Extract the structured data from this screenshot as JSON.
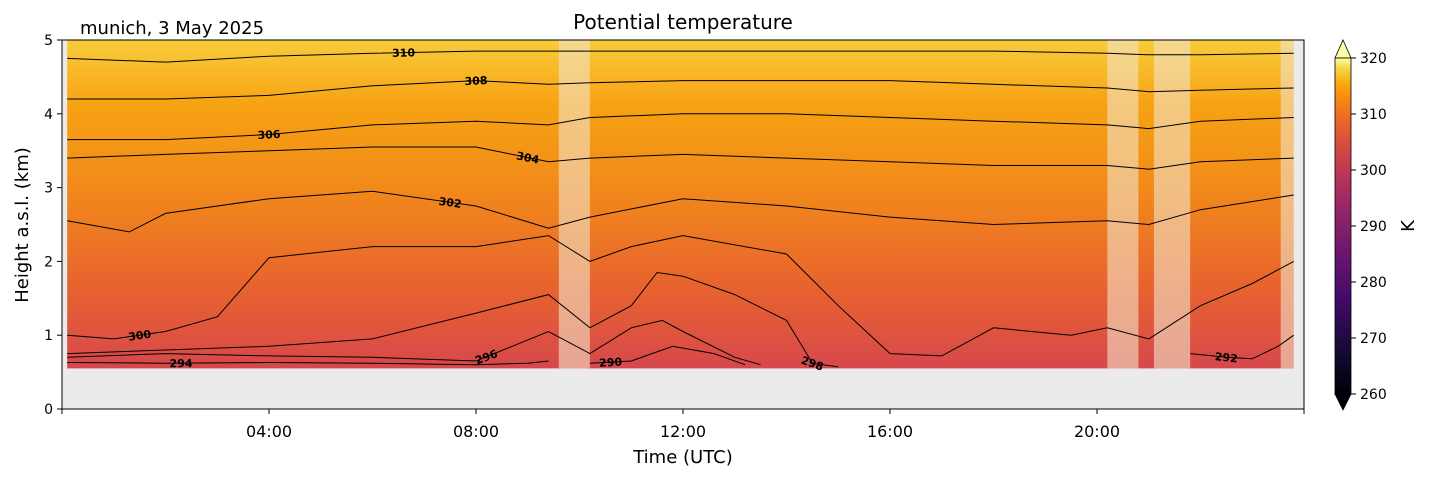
{
  "chart_data": {
    "type": "heatmap",
    "title": "Potential temperature",
    "location_date": "munich, 3 May 2025",
    "xlabel": "Time (UTC)",
    "ylabel": "Height a.s.l. (km)",
    "xlim_hours": [
      0,
      24
    ],
    "ylim": [
      0,
      5
    ],
    "x_ticks": [
      {
        "hour": 4,
        "label": "04:00"
      },
      {
        "hour": 8,
        "label": "08:00"
      },
      {
        "hour": 12,
        "label": "12:00"
      },
      {
        "hour": 16,
        "label": "16:00"
      },
      {
        "hour": 20,
        "label": "20:00"
      }
    ],
    "y_ticks": [
      0,
      1,
      2,
      3,
      4,
      5
    ],
    "data_bottom_km": 0.55,
    "data_start_hour": 0.1,
    "data_end_hour": 23.8,
    "missing_data_bands_hours": [
      [
        9.6,
        10.2
      ],
      [
        20.2,
        20.8
      ],
      [
        21.1,
        21.8
      ],
      [
        23.55,
        23.8
      ]
    ],
    "colorbar": {
      "label": "K",
      "min": 260,
      "max": 320,
      "ticks": [
        260,
        270,
        280,
        290,
        300,
        310,
        320
      ],
      "extend": "both",
      "colormap": "inferno"
    },
    "contour_levels_K": [
      290,
      292,
      294,
      296,
      298,
      300,
      302,
      304,
      306,
      308,
      310
    ],
    "contours": [
      {
        "level": 310,
        "label": "310",
        "label_hour": 6.6,
        "points": [
          [
            0.1,
            4.75
          ],
          [
            2,
            4.7
          ],
          [
            4,
            4.78
          ],
          [
            6,
            4.82
          ],
          [
            8,
            4.85
          ],
          [
            9.4,
            4.85
          ],
          [
            10.2,
            4.85
          ],
          [
            12,
            4.85
          ],
          [
            14,
            4.85
          ],
          [
            16,
            4.85
          ],
          [
            18,
            4.85
          ],
          [
            20.2,
            4.82
          ],
          [
            21,
            4.8
          ],
          [
            22,
            4.8
          ],
          [
            23.8,
            4.82
          ]
        ]
      },
      {
        "level": 308,
        "label": "308",
        "label_hour": 8.0,
        "points": [
          [
            0.1,
            4.2
          ],
          [
            2,
            4.2
          ],
          [
            4,
            4.25
          ],
          [
            6,
            4.38
          ],
          [
            8,
            4.45
          ],
          [
            9.4,
            4.4
          ],
          [
            10.2,
            4.42
          ],
          [
            12,
            4.45
          ],
          [
            14,
            4.45
          ],
          [
            16,
            4.45
          ],
          [
            18,
            4.4
          ],
          [
            20.2,
            4.35
          ],
          [
            21,
            4.3
          ],
          [
            22,
            4.32
          ],
          [
            23.8,
            4.35
          ]
        ]
      },
      {
        "level": 306,
        "label": "306",
        "label_hour": 4.0,
        "points": [
          [
            0.1,
            3.65
          ],
          [
            2,
            3.65
          ],
          [
            4,
            3.72
          ],
          [
            6,
            3.85
          ],
          [
            8,
            3.9
          ],
          [
            9.4,
            3.85
          ],
          [
            10.2,
            3.95
          ],
          [
            12,
            4.0
          ],
          [
            14,
            4.0
          ],
          [
            16,
            3.95
          ],
          [
            18,
            3.9
          ],
          [
            20.2,
            3.85
          ],
          [
            21,
            3.8
          ],
          [
            22,
            3.9
          ],
          [
            23.8,
            3.95
          ]
        ]
      },
      {
        "level": 304,
        "label": "304",
        "label_hour": 9.0,
        "points": [
          [
            0.1,
            3.4
          ],
          [
            2,
            3.45
          ],
          [
            4,
            3.5
          ],
          [
            6,
            3.55
          ],
          [
            8,
            3.55
          ],
          [
            9.4,
            3.35
          ],
          [
            10.2,
            3.4
          ],
          [
            12,
            3.45
          ],
          [
            14,
            3.4
          ],
          [
            16,
            3.35
          ],
          [
            18,
            3.3
          ],
          [
            20.2,
            3.3
          ],
          [
            21,
            3.25
          ],
          [
            22,
            3.35
          ],
          [
            23.8,
            3.4
          ]
        ]
      },
      {
        "level": 302,
        "label": "302",
        "label_hour": 7.5,
        "points": [
          [
            0.1,
            2.55
          ],
          [
            1.3,
            2.4
          ],
          [
            2,
            2.65
          ],
          [
            4,
            2.85
          ],
          [
            6,
            2.95
          ],
          [
            8,
            2.75
          ],
          [
            9.4,
            2.45
          ],
          [
            10.2,
            2.6
          ],
          [
            12,
            2.85
          ],
          [
            14,
            2.75
          ],
          [
            16,
            2.6
          ],
          [
            18,
            2.5
          ],
          [
            20.2,
            2.55
          ],
          [
            21,
            2.5
          ],
          [
            22,
            2.7
          ],
          [
            23.8,
            2.9
          ]
        ]
      },
      {
        "level": 300,
        "label": "300",
        "label_hour": 1.5,
        "points": [
          [
            0.1,
            1.0
          ],
          [
            1,
            0.95
          ],
          [
            2,
            1.05
          ],
          [
            3,
            1.25
          ],
          [
            4,
            2.05
          ],
          [
            6,
            2.2
          ],
          [
            8,
            2.2
          ],
          [
            9.4,
            2.35
          ],
          [
            10.2,
            2.0
          ],
          [
            11,
            2.2
          ],
          [
            12,
            2.35
          ],
          [
            14,
            2.1
          ],
          [
            15,
            1.4
          ],
          [
            16,
            0.75
          ],
          [
            17,
            0.72
          ],
          [
            18,
            1.1
          ],
          [
            19.5,
            1.0
          ],
          [
            20.2,
            1.1
          ],
          [
            21,
            0.95
          ],
          [
            22,
            1.4
          ],
          [
            23,
            1.7
          ],
          [
            23.8,
            2.0
          ]
        ]
      },
      {
        "level": 298,
        "label": "298",
        "label_hour": 14.5,
        "points": [
          [
            0.1,
            0.75
          ],
          [
            2,
            0.8
          ],
          [
            4,
            0.85
          ],
          [
            6,
            0.95
          ],
          [
            8,
            1.3
          ],
          [
            9.4,
            1.55
          ],
          [
            10.2,
            1.1
          ],
          [
            11,
            1.4
          ],
          [
            11.5,
            1.85
          ],
          [
            12,
            1.8
          ],
          [
            13,
            1.55
          ],
          [
            14,
            1.2
          ],
          [
            14.5,
            0.62
          ],
          [
            15,
            0.57
          ]
        ]
      },
      {
        "level": 296,
        "label": "296",
        "label_hour": 8.2,
        "points": [
          [
            0.1,
            0.7
          ],
          [
            2,
            0.75
          ],
          [
            4,
            0.72
          ],
          [
            6,
            0.7
          ],
          [
            8,
            0.65
          ],
          [
            9.4,
            1.05
          ],
          [
            10.2,
            0.75
          ],
          [
            11,
            1.1
          ],
          [
            11.6,
            1.2
          ],
          [
            12,
            1.05
          ],
          [
            13,
            0.7
          ],
          [
            13.5,
            0.6
          ]
        ]
      },
      {
        "level": 294,
        "label": "294",
        "label_hour": 2.3,
        "points": [
          [
            0.1,
            0.63
          ],
          [
            2,
            0.62
          ],
          [
            4,
            0.63
          ],
          [
            6,
            0.62
          ],
          [
            8,
            0.6
          ],
          [
            9.0,
            0.62
          ],
          [
            9.4,
            0.65
          ]
        ]
      },
      {
        "level": 292,
        "label": "292",
        "label_hour": 22.5,
        "points": [
          [
            21.8,
            0.75
          ],
          [
            22.5,
            0.7
          ],
          [
            23,
            0.68
          ],
          [
            23.5,
            0.85
          ],
          [
            23.8,
            1.0
          ]
        ]
      },
      {
        "level": 290,
        "label": "290",
        "label_hour": 10.6,
        "points": [
          [
            10.2,
            0.62
          ],
          [
            11,
            0.65
          ],
          [
            11.8,
            0.85
          ],
          [
            12.6,
            0.75
          ],
          [
            13.2,
            0.6
          ]
        ]
      }
    ]
  }
}
